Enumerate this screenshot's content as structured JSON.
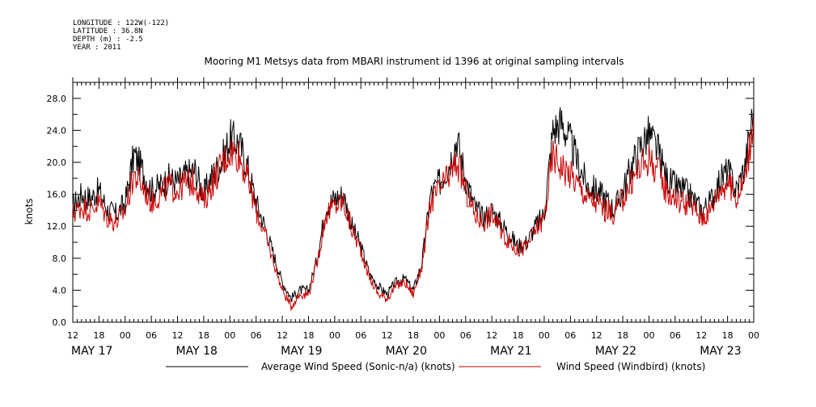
{
  "header": {
    "meta_lines": [
      "LONGITUDE : 122W(-122)",
      "LATITUDE : 36.8N",
      "DEPTH (m) : -2.5",
      "YEAR : 2011"
    ]
  },
  "chart_data": {
    "type": "line",
    "title": "Mooring M1 Metsys data from MBARI instrument id 1396 at original sampling intervals",
    "xlabel": "",
    "ylabel": "knots",
    "ylim": [
      0,
      30
    ],
    "yticks": [
      0.0,
      4.0,
      8.0,
      12.0,
      16.0,
      20.0,
      24.0,
      28.0
    ],
    "yticks_labels": [
      "0.0",
      "4.0",
      "8.0",
      "12.0",
      "16.0",
      "20.0",
      "24.0",
      "28.0"
    ],
    "x_unit": "hours since MAY 17 12:00",
    "xlim": [
      0,
      156
    ],
    "xtick_hours": [
      0,
      6,
      12,
      18,
      24,
      30,
      36,
      42,
      48,
      54,
      60,
      66,
      72,
      78,
      84,
      90,
      96,
      102,
      108,
      114,
      120,
      126,
      132,
      138,
      144,
      150,
      156
    ],
    "xtick_labels": [
      "12",
      "18",
      "00",
      "06",
      "12",
      "18",
      "00",
      "06",
      "12",
      "18",
      "00",
      "06",
      "12",
      "18",
      "00",
      "06",
      "12",
      "18",
      "00",
      "06",
      "12",
      "18",
      "00",
      "06",
      "12",
      "18",
      "00"
    ],
    "date_labels": [
      {
        "text": "MAY 17",
        "hour": 0
      },
      {
        "text": "MAY 18",
        "hour": 24
      },
      {
        "text": "MAY 19",
        "hour": 48
      },
      {
        "text": "MAY 20",
        "hour": 72
      },
      {
        "text": "MAY 21",
        "hour": 96
      },
      {
        "text": "MAY 22",
        "hour": 120
      },
      {
        "text": "MAY 23",
        "hour": 144
      }
    ],
    "legend_position": "bottom",
    "grid": false,
    "series": [
      {
        "name": "Average Wind Speed (Sonic-n/a) (knots)",
        "color": "#000000",
        "x": [
          0,
          2,
          4,
          6,
          8,
          10,
          12,
          14,
          16,
          18,
          20,
          22,
          24,
          26,
          28,
          30,
          32,
          34,
          36,
          38,
          40,
          42,
          44,
          46,
          48,
          50,
          52,
          54,
          56,
          58,
          60,
          62,
          64,
          66,
          68,
          70,
          72,
          74,
          76,
          78,
          80,
          82,
          84,
          86,
          88,
          90,
          92,
          94,
          96,
          98,
          100,
          102,
          104,
          106,
          108,
          110,
          112,
          114,
          116,
          118,
          120,
          122,
          124,
          126,
          128,
          130,
          132,
          134,
          136,
          138,
          140,
          142,
          144,
          146,
          148,
          150,
          152,
          154,
          156
        ],
        "values": [
          14.5,
          16.0,
          15.5,
          16.5,
          14.0,
          13.5,
          15.0,
          21.0,
          19.0,
          16.5,
          17.0,
          18.0,
          17.5,
          18.5,
          19.0,
          16.0,
          18.5,
          20.0,
          23.0,
          22.5,
          19.5,
          15.0,
          12.0,
          8.5,
          5.0,
          3.0,
          4.0,
          4.0,
          8.0,
          14.5,
          15.5,
          16.0,
          12.0,
          9.5,
          6.0,
          4.5,
          3.5,
          5.0,
          5.5,
          4.0,
          7.5,
          16.0,
          17.5,
          19.5,
          23.0,
          18.0,
          14.5,
          13.0,
          14.0,
          12.5,
          11.0,
          9.5,
          10.0,
          12.0,
          13.5,
          24.0,
          25.0,
          22.5,
          19.5,
          17.0,
          16.5,
          15.5,
          14.0,
          16.5,
          19.5,
          22.0,
          23.5,
          21.5,
          18.0,
          17.0,
          16.5,
          15.5,
          14.0,
          15.0,
          17.5,
          19.0,
          16.5,
          19.5,
          27.0
        ]
      },
      {
        "name": "Wind Speed (Windbird) (knots)",
        "color": "#cc0000",
        "x": [
          0,
          2,
          4,
          6,
          8,
          10,
          12,
          14,
          16,
          18,
          20,
          22,
          24,
          26,
          28,
          30,
          32,
          34,
          36,
          38,
          40,
          42,
          44,
          46,
          48,
          50,
          52,
          54,
          56,
          58,
          60,
          62,
          64,
          66,
          68,
          70,
          72,
          74,
          76,
          78,
          80,
          82,
          84,
          86,
          88,
          90,
          92,
          94,
          96,
          98,
          100,
          102,
          104,
          106,
          108,
          110,
          112,
          114,
          116,
          118,
          120,
          122,
          124,
          126,
          128,
          130,
          132,
          134,
          136,
          138,
          140,
          142,
          144,
          146,
          148,
          150,
          152,
          154,
          156
        ],
        "values": [
          13.5,
          14.5,
          14.0,
          15.0,
          13.0,
          12.5,
          14.0,
          18.5,
          17.0,
          15.0,
          16.0,
          17.0,
          16.5,
          17.5,
          17.5,
          15.0,
          17.5,
          19.5,
          21.5,
          21.0,
          18.0,
          14.0,
          11.0,
          7.5,
          4.0,
          2.0,
          3.5,
          3.5,
          7.5,
          13.5,
          14.5,
          15.0,
          11.5,
          9.0,
          5.5,
          3.5,
          3.0,
          4.5,
          5.0,
          3.5,
          7.0,
          15.0,
          16.5,
          18.0,
          20.0,
          16.5,
          13.5,
          12.5,
          13.5,
          11.5,
          10.0,
          9.0,
          9.5,
          11.5,
          13.0,
          21.0,
          19.5,
          18.5,
          17.0,
          15.5,
          15.0,
          14.0,
          13.5,
          15.5,
          17.5,
          19.5,
          20.5,
          19.0,
          16.5,
          15.5,
          15.0,
          14.5,
          13.0,
          14.0,
          16.5,
          17.5,
          15.5,
          18.0,
          25.5
        ]
      }
    ]
  }
}
